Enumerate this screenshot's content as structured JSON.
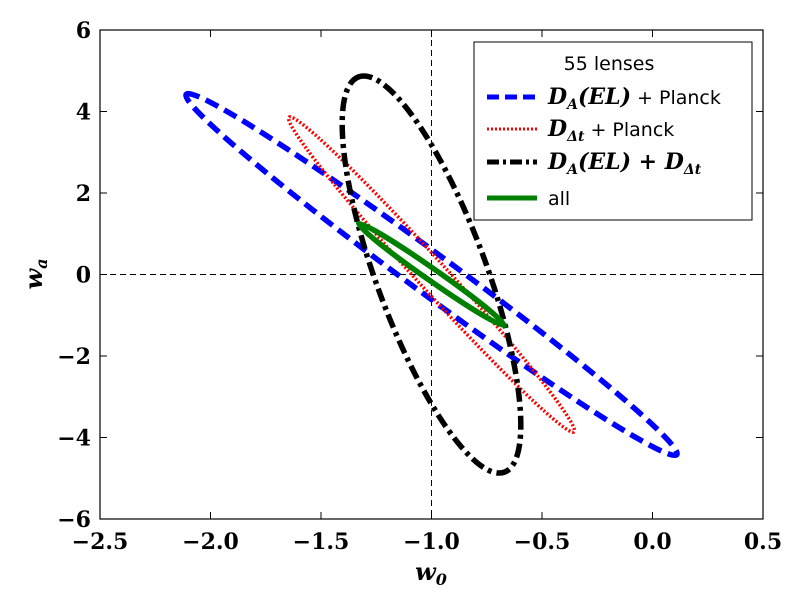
{
  "chart_data": {
    "type": "line",
    "title": "",
    "xlabel": "w0",
    "ylabel": "wa",
    "xlim": [
      -2.5,
      0.5
    ],
    "ylim": [
      -6,
      6
    ],
    "xticks": [
      -2.5,
      -2.0,
      -1.5,
      -1.0,
      -0.5,
      0.0,
      0.5
    ],
    "yticks": [
      -6,
      -4,
      -2,
      0,
      2,
      4,
      6
    ],
    "xtick_labels": [
      "−2.5",
      "−2.0",
      "−1.5",
      "−1.0",
      "−0.5",
      "0.0",
      "0.5"
    ],
    "ytick_labels": [
      "−6",
      "−4",
      "−2",
      "0",
      "2",
      "4",
      "6"
    ],
    "reference_lines": [
      {
        "orientation": "vertical",
        "value": -1.0,
        "style": "dashed"
      },
      {
        "orientation": "horizontal",
        "value": 0.0,
        "style": "dashed"
      }
    ],
    "legend": {
      "title": "55 lenses",
      "location": "top-right"
    },
    "series": [
      {
        "name": "DA_EL_Planck",
        "label_math": "D_A(EL)",
        "label_text": " + Planck",
        "color": "#0000ff",
        "style": "dashed",
        "center": [
          -1.0,
          0.0
        ],
        "major_end_a": [
          -2.1,
          4.42
        ],
        "major_end_b": [
          0.12,
          -4.42
        ],
        "minor_semi_w0": 0.155
      },
      {
        "name": "DDt_Planck",
        "label_math": "D_Δt",
        "label_text": " + Planck",
        "color": "#ff0000",
        "style": "dotted",
        "center": [
          -1.0,
          0.0
        ],
        "major_end_a": [
          -1.645,
          3.86
        ],
        "major_end_b": [
          -0.355,
          -3.86
        ],
        "minor_semi_w0": 0.09
      },
      {
        "name": "DA_EL_DDt",
        "label_math": "D_A(EL) + D_Δt",
        "label_text": "",
        "color": "#000000",
        "style": "dashdot",
        "center": [
          -1.0,
          0.0
        ],
        "major_end_a": [
          -1.33,
          4.85
        ],
        "major_end_b": [
          -0.67,
          -4.85
        ],
        "minor_semi_w0": 0.265
      },
      {
        "name": "all",
        "label_math": "",
        "label_text": "all",
        "color": "#008000",
        "style": "solid",
        "center": [
          -1.0,
          0.0
        ],
        "major_end_a": [
          -1.33,
          1.25
        ],
        "major_end_b": [
          -0.67,
          -1.25
        ],
        "minor_semi_w0": 0.047
      }
    ]
  }
}
